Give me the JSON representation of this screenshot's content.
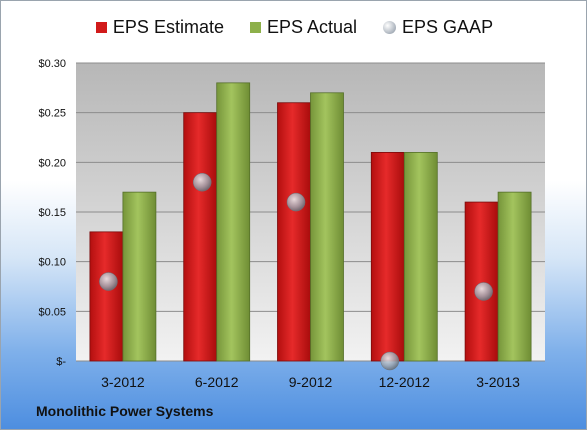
{
  "chart_data": {
    "type": "bar",
    "categories": [
      "3-2012",
      "6-2012",
      "9-2012",
      "12-2012",
      "3-2013"
    ],
    "series": [
      {
        "name": "EPS Estimate",
        "kind": "bar",
        "color": "#d11a1a",
        "values": [
          0.13,
          0.25,
          0.26,
          0.21,
          0.16
        ]
      },
      {
        "name": "EPS Actual",
        "kind": "bar",
        "color": "#8db04a",
        "values": [
          0.17,
          0.28,
          0.27,
          0.21,
          0.17
        ]
      },
      {
        "name": "EPS GAAP",
        "kind": "scatter",
        "color": "#b9bfc7",
        "values": [
          0.08,
          0.18,
          0.16,
          0.0,
          0.07
        ]
      }
    ],
    "yticks": [
      "$-",
      "$0.05",
      "$0.10",
      "$0.15",
      "$0.20",
      "$0.25",
      "$0.30"
    ],
    "ylim": [
      0,
      0.3
    ],
    "grid": true,
    "legend_position": "top",
    "title": "",
    "xlabel": "",
    "ylabel": ""
  },
  "footer": {
    "company": "Monolithic Power Systems"
  }
}
